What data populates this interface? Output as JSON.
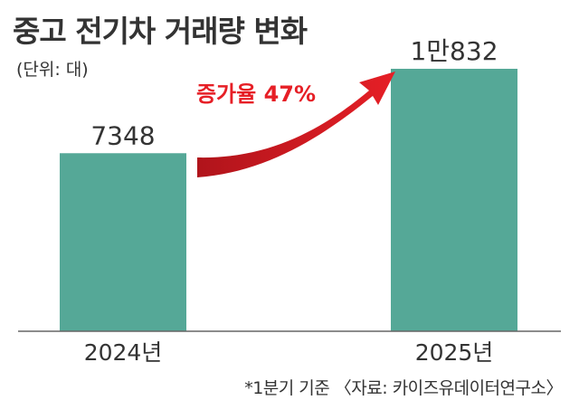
{
  "title": "중고 전기차 거래량 변화",
  "unit_note": "(단위: 대)",
  "footnote": "*1분기 기준 〈자료: 카이즈유데이터연구소〉",
  "chart_data": {
    "type": "bar",
    "title": "중고 전기차 거래량 변화",
    "categories": [
      "2024년",
      "2025년"
    ],
    "values": [
      7348,
      10832
    ],
    "value_labels": [
      "7348",
      "1만832"
    ],
    "annotation": "증가율 47%",
    "ylabel": "",
    "ylim": [
      0,
      10832
    ],
    "grid": false,
    "legend": "none"
  },
  "colors": {
    "bar": "#55a897",
    "arrow": "#e61f26",
    "annotation_text": "#e61f26",
    "text": "#333333",
    "baseline": "#555555"
  }
}
